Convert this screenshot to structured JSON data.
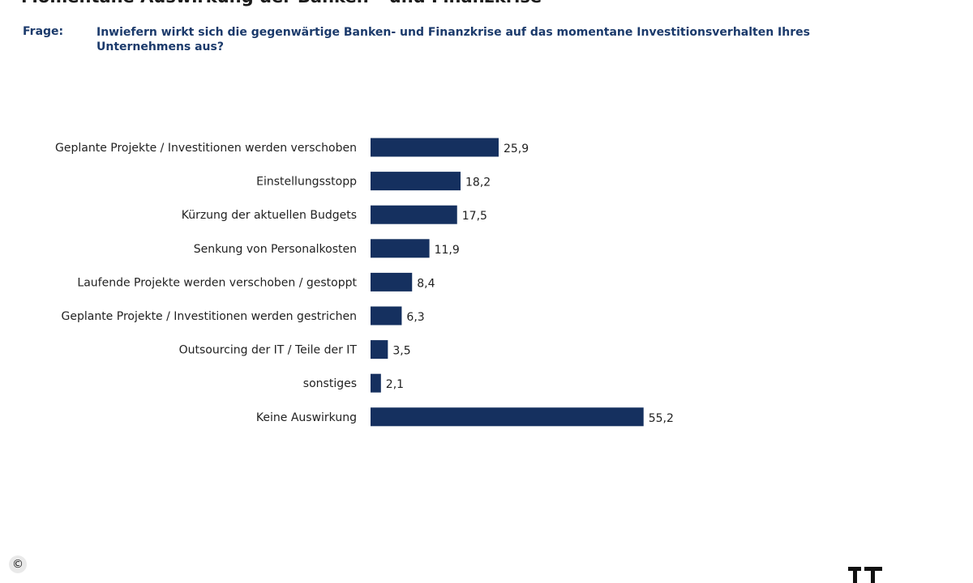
{
  "header": {
    "title": "Momentane Auswirkung der Banken – und Finanzkrise",
    "question_label": "Frage:",
    "question_text": "Inwiefern wirkt sich die gegenwärtige Banken- und Finanzkrise auf das momentane Investitionsverhalten Ihres Unternehmens aus?"
  },
  "chart_data": {
    "type": "bar",
    "orientation": "horizontal",
    "categories": [
      "Geplante Projekte / Investitionen werden verschoben",
      "Einstellungsstopp",
      "Kürzung der aktuellen Budgets",
      "Senkung von Personalkosten",
      "Laufende Projekte werden verschoben / gestoppt",
      "Geplante Projekte / Investitionen werden gestrichen",
      "Outsourcing der IT / Teile der IT",
      "sonstiges",
      "Keine Auswirkung"
    ],
    "values": [
      25.9,
      18.2,
      17.5,
      11.9,
      8.4,
      6.3,
      3.5,
      2.1,
      55.2
    ],
    "value_labels": [
      "25,9",
      "18,2",
      "17,5",
      "11,9",
      "8,4",
      "6,3",
      "3,5",
      "2,1",
      "55,2"
    ],
    "bar_color": "#15305f",
    "grid": false,
    "legend": "none"
  },
  "footer": {
    "copyright_symbol": "©",
    "logo_icon": "publisher-logo-icon"
  }
}
